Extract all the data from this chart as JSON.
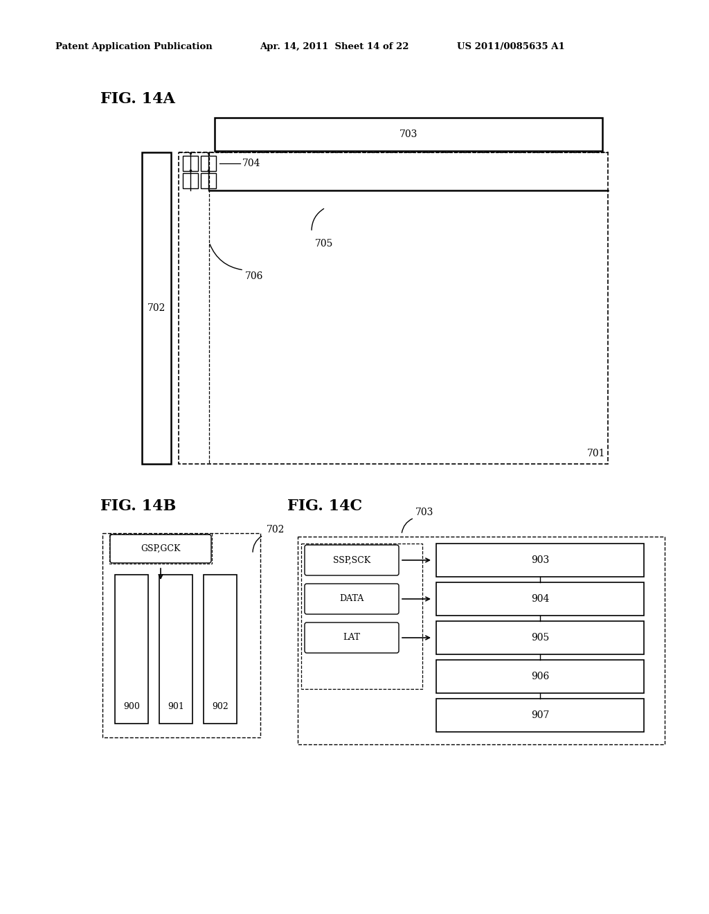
{
  "bg_color": "#ffffff",
  "header_text": "Patent Application Publication",
  "header_date": "Apr. 14, 2011  Sheet 14 of 22",
  "header_patent": "US 2011/0085635 A1",
  "fig14a_label": "FIG. 14A",
  "fig14b_label": "FIG. 14B",
  "fig14c_label": "FIG. 14C"
}
